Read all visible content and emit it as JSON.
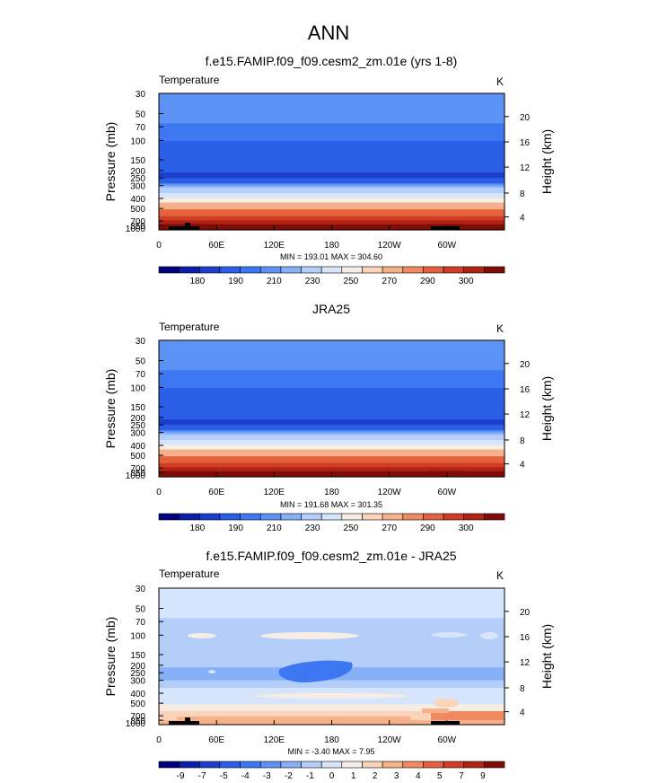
{
  "figure_title": "ANN",
  "chart_data": [
    {
      "type": "heatmap",
      "panel_title": "f.e15.FAMIP.f09_f09.cesm2_zm.01e (yrs 1-8)",
      "variable": "Temperature",
      "units": "K",
      "ylabel": "Pressure (mb)",
      "ylabel_right": "Height (km)",
      "pressure_ticks": [
        "30",
        "50",
        "70",
        "100",
        "150",
        "200",
        "250",
        "300",
        "400",
        "500",
        "700",
        "850",
        "1000"
      ],
      "height_ticks": [
        "20",
        "16",
        "12",
        "8",
        "4"
      ],
      "longitude_ticks": [
        "0",
        "60E",
        "120E",
        "180",
        "120W",
        "60W"
      ],
      "stats": "MIN = 193.01  MAX = 304.60",
      "colorbar_labels": [
        "180",
        "190",
        "210",
        "230",
        "250",
        "270",
        "290",
        "300"
      ],
      "level_colors": [
        "#00007f",
        "#0b1ea8",
        "#1a3fcc",
        "#2a5ee6",
        "#3d78f2",
        "#5d92f5",
        "#86b0f7",
        "#b2cef9",
        "#d6e5fb",
        "#f7ede5",
        "#fad3b8",
        "#f6b08a",
        "#f08a61",
        "#e5623f",
        "#d03d24",
        "#b02315",
        "#7f0c06"
      ],
      "band_levels": [
        5,
        4,
        3,
        3,
        2,
        3,
        5,
        6,
        7,
        8,
        9,
        11,
        13,
        14,
        15,
        16
      ]
    },
    {
      "type": "heatmap",
      "panel_title": "JRA25",
      "variable": "Temperature",
      "units": "K",
      "ylabel": "Pressure (mb)",
      "ylabel_right": "Height (km)",
      "pressure_ticks": [
        "30",
        "50",
        "70",
        "100",
        "150",
        "200",
        "250",
        "300",
        "400",
        "500",
        "700",
        "850",
        "1000"
      ],
      "height_ticks": [
        "20",
        "16",
        "12",
        "8",
        "4"
      ],
      "longitude_ticks": [
        "0",
        "60E",
        "120E",
        "180",
        "120W",
        "60W"
      ],
      "stats": "MIN = 191.68  MAX = 301.35",
      "colorbar_labels": [
        "180",
        "190",
        "210",
        "230",
        "250",
        "270",
        "290",
        "300"
      ],
      "level_colors": [
        "#00007f",
        "#0b1ea8",
        "#1a3fcc",
        "#2a5ee6",
        "#3d78f2",
        "#5d92f5",
        "#86b0f7",
        "#b2cef9",
        "#d6e5fb",
        "#f7ede5",
        "#fad3b8",
        "#f6b08a",
        "#f08a61",
        "#e5623f",
        "#d03d24",
        "#b02315",
        "#7f0c06"
      ],
      "band_levels": [
        5,
        4,
        3,
        3,
        2,
        3,
        5,
        6,
        7,
        8,
        9,
        11,
        13,
        14,
        15,
        16
      ]
    },
    {
      "type": "heatmap",
      "panel_title": "f.e15.FAMIP.f09_f09.cesm2_zm.01e - JRA25",
      "variable": "Temperature",
      "units": "K",
      "ylabel": "Pressure (mb)",
      "ylabel_right": "Height (km)",
      "pressure_ticks": [
        "30",
        "50",
        "70",
        "100",
        "150",
        "200",
        "250",
        "300",
        "400",
        "500",
        "700",
        "850",
        "1000"
      ],
      "height_ticks": [
        "20",
        "16",
        "12",
        "8",
        "4"
      ],
      "longitude_ticks": [
        "0",
        "60E",
        "120E",
        "180",
        "120W",
        "60W"
      ],
      "stats": "MIN = -3.40  MAX =  7.95",
      "colorbar_labels": [
        "-9",
        "-7",
        "-5",
        "-4",
        "-3",
        "-2",
        "-1",
        "0",
        "1",
        "2",
        "3",
        "4",
        "5",
        "7",
        "9"
      ],
      "level_colors": [
        "#00007f",
        "#0b1ea8",
        "#1a3fcc",
        "#2a5ee6",
        "#3d78f2",
        "#5d92f5",
        "#86b0f7",
        "#b2cef9",
        "#d6e5fb",
        "#f7ede5",
        "#fad3b8",
        "#f6b08a",
        "#f08a61",
        "#e5623f",
        "#d03d24",
        "#b02315",
        "#7f0c06"
      ],
      "band_levels": [
        8,
        7,
        7,
        7,
        6,
        6,
        6,
        7,
        7,
        8,
        8,
        8,
        9,
        10,
        10,
        11
      ]
    }
  ]
}
